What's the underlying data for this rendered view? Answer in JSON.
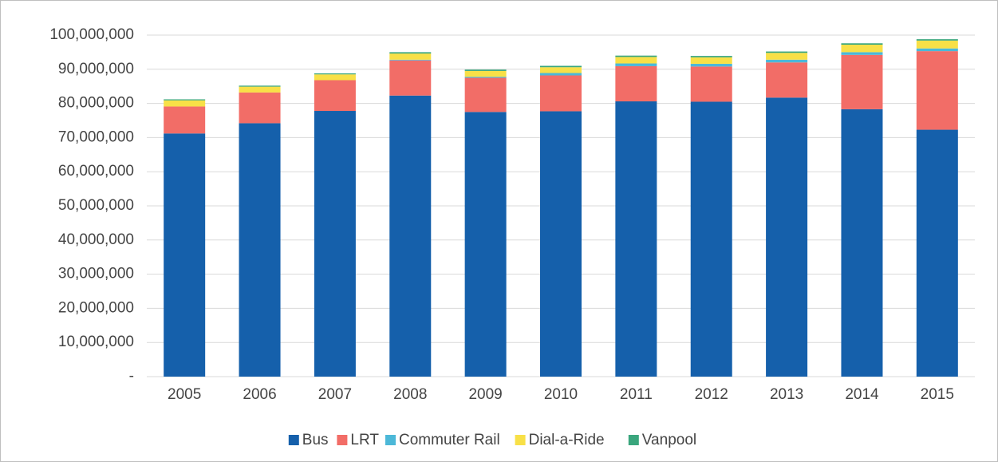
{
  "chart_data": {
    "type": "stacked_bar",
    "categories": [
      "2005",
      "2006",
      "2007",
      "2008",
      "2009",
      "2010",
      "2011",
      "2012",
      "2013",
      "2014",
      "2015"
    ],
    "series": [
      {
        "name": "Bus",
        "color": "#1560ab",
        "values": [
          71200000,
          74200000,
          77800000,
          82300000,
          77500000,
          77700000,
          80600000,
          80500000,
          81700000,
          78300000,
          72300000
        ]
      },
      {
        "name": "LRT",
        "color": "#f26d67",
        "values": [
          7900000,
          9000000,
          9000000,
          10300000,
          10000000,
          10500000,
          10300000,
          10300000,
          10300000,
          15900000,
          23000000
        ]
      },
      {
        "name": "Commuter Rail",
        "color": "#4cb8d8",
        "values": [
          0,
          0,
          0,
          200000,
          300000,
          700000,
          800000,
          800000,
          800000,
          800000,
          800000
        ]
      },
      {
        "name": "Dial-a-Ride",
        "color": "#f8e047",
        "values": [
          1800000,
          1700000,
          1700000,
          1800000,
          1700000,
          1700000,
          1900000,
          1900000,
          2000000,
          2200000,
          2300000
        ]
      },
      {
        "name": "Vanpool",
        "color": "#3aa67d",
        "values": [
          300000,
          300000,
          300000,
          400000,
          400000,
          400000,
          400000,
          400000,
          400000,
          400000,
          400000
        ]
      }
    ],
    "ylim": [
      0,
      100000000
    ],
    "yticks": [
      {
        "value": 0,
        "label": "-"
      },
      {
        "value": 10000000,
        "label": "10,000,000"
      },
      {
        "value": 20000000,
        "label": "20,000,000"
      },
      {
        "value": 30000000,
        "label": "30,000,000"
      },
      {
        "value": 40000000,
        "label": "40,000,000"
      },
      {
        "value": 50000000,
        "label": "50,000,000"
      },
      {
        "value": 60000000,
        "label": "60,000,000"
      },
      {
        "value": 70000000,
        "label": "70,000,000"
      },
      {
        "value": 80000000,
        "label": "80,000,000"
      },
      {
        "value": 90000000,
        "label": "90,000,000"
      },
      {
        "value": 100000000,
        "label": "100,000,000"
      }
    ],
    "grid": true,
    "legend": "bottom"
  }
}
